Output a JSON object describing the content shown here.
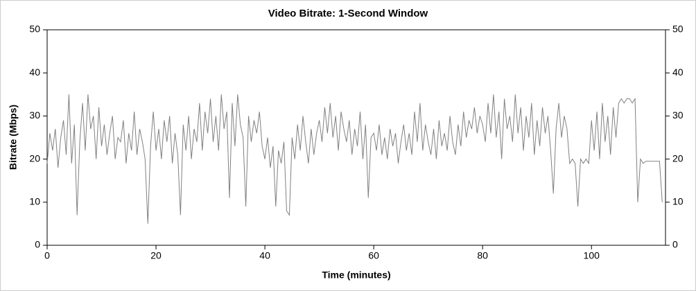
{
  "chart_data": {
    "type": "line",
    "title": "Video Bitrate: 1-Second Window",
    "xlabel": "Time (minutes)",
    "ylabel": "Bitrate (Mbps)",
    "xlim": [
      0,
      113.6
    ],
    "xticks": [
      0,
      20,
      40,
      60,
      80,
      100
    ],
    "ylim": [
      0,
      50
    ],
    "yticks": [
      0,
      10,
      20,
      30,
      40,
      50
    ],
    "y2lim": [
      0,
      50
    ],
    "y2ticks": [
      0,
      10,
      20,
      30,
      40,
      50
    ],
    "x": [
      0,
      0.5,
      1,
      1.5,
      2,
      2.5,
      3,
      3.5,
      4,
      4.5,
      5,
      5.5,
      6,
      6.5,
      7,
      7.5,
      8,
      8.5,
      9,
      9.5,
      10,
      10.5,
      11,
      11.5,
      12,
      12.5,
      13,
      13.5,
      14,
      14.5,
      15,
      15.5,
      16,
      16.5,
      17,
      17.5,
      18,
      18.5,
      19,
      19.5,
      20,
      20.5,
      21,
      21.5,
      22,
      22.5,
      23,
      23.5,
      24,
      24.5,
      25,
      25.5,
      26,
      26.5,
      27,
      27.5,
      28,
      28.5,
      29,
      29.5,
      30,
      30.5,
      31,
      31.5,
      32,
      32.5,
      33,
      33.5,
      34,
      34.5,
      35,
      35.5,
      36,
      36.5,
      37,
      37.5,
      38,
      38.5,
      39,
      39.5,
      40,
      40.5,
      41,
      41.5,
      42,
      42.5,
      43,
      43.5,
      44,
      44.5,
      45,
      45.5,
      46,
      46.5,
      47,
      47.5,
      48,
      48.5,
      49,
      49.5,
      50,
      50.5,
      51,
      51.5,
      52,
      52.5,
      53,
      53.5,
      54,
      54.5,
      55,
      55.5,
      56,
      56.5,
      57,
      57.5,
      58,
      58.5,
      59,
      59.5,
      60,
      60.5,
      61,
      61.5,
      62,
      62.5,
      63,
      63.5,
      64,
      64.5,
      65,
      65.5,
      66,
      66.5,
      67,
      67.5,
      68,
      68.5,
      69,
      69.5,
      70,
      70.5,
      71,
      71.5,
      72,
      72.5,
      73,
      73.5,
      74,
      74.5,
      75,
      75.5,
      76,
      76.5,
      77,
      77.5,
      78,
      78.5,
      79,
      79.5,
      80,
      80.5,
      81,
      81.5,
      82,
      82.5,
      83,
      83.5,
      84,
      84.5,
      85,
      85.5,
      86,
      86.5,
      87,
      87.5,
      88,
      88.5,
      89,
      89.5,
      90,
      90.5,
      91,
      91.5,
      92,
      92.5,
      93,
      93.5,
      94,
      94.5,
      95,
      95.5,
      96,
      96.5,
      97,
      97.5,
      98,
      98.5,
      99,
      99.5,
      100,
      100.5,
      101,
      101.5,
      102,
      102.5,
      103,
      103.5,
      104,
      104.5,
      105,
      105.5,
      106,
      106.5,
      107,
      107.5,
      108,
      108.5,
      109,
      109.5,
      110,
      110.5,
      111,
      111.5,
      112,
      112.5,
      113
    ],
    "series": [
      {
        "name": "Bitrate",
        "color": "#808080",
        "values": [
          19,
          26,
          22,
          27,
          18,
          25,
          29,
          21,
          35,
          19,
          28,
          7,
          24,
          33,
          22,
          35,
          27,
          30,
          20,
          32,
          23,
          28,
          21,
          26,
          30,
          20,
          25,
          24,
          29,
          19,
          26,
          22,
          31,
          21,
          27,
          24,
          20,
          5,
          23,
          31,
          22,
          27,
          20,
          29,
          24,
          30,
          19,
          26,
          21,
          7,
          28,
          22,
          30,
          20,
          27,
          24,
          33,
          22,
          31,
          26,
          34,
          24,
          30,
          22,
          35,
          27,
          31,
          11,
          33,
          23,
          35,
          28,
          25,
          9,
          30,
          24,
          29,
          26,
          31,
          23,
          20,
          25,
          18,
          23,
          9,
          22,
          19,
          24,
          8,
          7,
          25,
          20,
          28,
          22,
          30,
          24,
          19,
          27,
          21,
          26,
          29,
          24,
          32,
          26,
          33,
          25,
          30,
          22,
          31,
          27,
          24,
          29,
          21,
          27,
          23,
          31,
          20,
          28,
          11,
          25,
          26,
          22,
          28,
          21,
          25,
          20,
          27,
          23,
          26,
          19,
          24,
          28,
          22,
          26,
          21,
          31,
          24,
          33,
          22,
          28,
          24,
          21,
          27,
          20,
          29,
          23,
          26,
          22,
          30,
          24,
          21,
          28,
          23,
          31,
          25,
          29,
          27,
          32,
          26,
          30,
          28,
          24,
          33,
          26,
          35,
          25,
          31,
          20,
          34,
          27,
          30,
          24,
          35,
          26,
          32,
          22,
          30,
          25,
          33,
          21,
          29,
          23,
          32,
          26,
          30,
          22,
          12,
          27,
          33,
          25,
          30,
          27,
          19,
          20,
          19,
          9,
          20,
          19,
          20,
          19,
          29,
          22,
          31,
          20,
          33,
          24,
          30,
          21,
          32,
          25,
          33,
          34,
          33,
          34,
          34,
          33,
          34,
          10,
          20,
          19,
          19.5,
          19.5,
          19.5,
          19.5,
          19.5,
          19.5,
          10
        ]
      }
    ]
  }
}
